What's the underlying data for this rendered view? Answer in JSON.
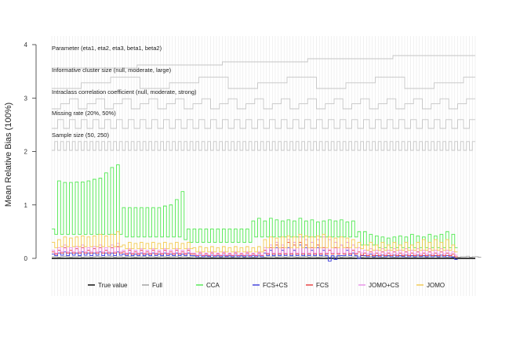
{
  "chart_data": {
    "type": "line",
    "ylabel": "Mean Relative Bias (100%)",
    "ylim": [
      0,
      4
    ],
    "yticks": [
      "0",
      "1",
      "2",
      "3",
      "4"
    ],
    "n_scenarios": 144,
    "grid": "vertical",
    "legend_placement": "bottom",
    "parameter_rows": [
      {
        "label": "Parameter (eta1, eta2, eta3, beta1, beta2)",
        "levels": 5
      },
      {
        "label": "Informative cluster size (null, moderate, large)",
        "levels": 3
      },
      {
        "label": "Intraclass correlation coefficient (null, moderate, strong)",
        "levels": 3
      },
      {
        "label": "Missing rate (20%, 50%)",
        "levels": 2
      },
      {
        "label": "Sample size (50, 250)",
        "levels": 2
      }
    ],
    "series": [
      {
        "name": "True value",
        "color": "#000000",
        "values": [
          0,
          0,
          0,
          0,
          0,
          0,
          0,
          0,
          0,
          0,
          0,
          0,
          0,
          0,
          0,
          0,
          0,
          0,
          0,
          0,
          0,
          0,
          0,
          0,
          0,
          0,
          0,
          0,
          0,
          0,
          0,
          0,
          0,
          0,
          0,
          0,
          0,
          0,
          0,
          0,
          0,
          0,
          0,
          0,
          0,
          0,
          0,
          0,
          0,
          0,
          0,
          0,
          0,
          0,
          0,
          0,
          0,
          0,
          0,
          0,
          0,
          0,
          0,
          0,
          0,
          0,
          0,
          0,
          0,
          0,
          0,
          0,
          0,
          0,
          0,
          0,
          0,
          0,
          0,
          0,
          0,
          0,
          0,
          0,
          0,
          0,
          0,
          0,
          0,
          0,
          0,
          0,
          0,
          0,
          0,
          0,
          0,
          0,
          0,
          0,
          0,
          0,
          0,
          0,
          0,
          0,
          0,
          0,
          0,
          0,
          0,
          0,
          0,
          0,
          0,
          0,
          0,
          0,
          0,
          0,
          0,
          0,
          0,
          0,
          0,
          0,
          0,
          0,
          0,
          0,
          0,
          0,
          0,
          0,
          0,
          0,
          0,
          0,
          0,
          0,
          0,
          0,
          0,
          0
        ]
      },
      {
        "name": "Full",
        "color": "#9e9e9e",
        "values": [
          0.03,
          0.03,
          0.02,
          0.03,
          0.04,
          0.03,
          0.02,
          0.03,
          0.03,
          0.04,
          0.02,
          0.03,
          0.03,
          0.02,
          0.03,
          0.04,
          0.03,
          0.02,
          0.03,
          0.03,
          0.04,
          0.02,
          0.03,
          0.03,
          0.02,
          0.03,
          0.04,
          0.03,
          0.02,
          0.03,
          0.03,
          0.04,
          0.02,
          0.03,
          0.03,
          0.02,
          0.03,
          0.04,
          0.03,
          0.02,
          0.03,
          0.03,
          0.04,
          0.02,
          0.03,
          0.03,
          0.02,
          0.03,
          0.04,
          0.03,
          0.02,
          0.03,
          0.03,
          0.04,
          0.02,
          0.03,
          0.03,
          0.02,
          0.03,
          0.04,
          0.03,
          0.02,
          0.03,
          0.03,
          0.04,
          0.02,
          0.03,
          0.03,
          0.02,
          0.03,
          0.04,
          0.03,
          0.02,
          0.03,
          0.03,
          0.04,
          0.02,
          0.03,
          0.03,
          0.02,
          0.03,
          0.04,
          0.03,
          0.02,
          0.03,
          0.03,
          0.04,
          0.02,
          0.03,
          0.03,
          0.02,
          0.03,
          0.04,
          0.03,
          0.02,
          0.03,
          0.03,
          0.04,
          0.02,
          0.03,
          0.03,
          0.02,
          0.03,
          0.04,
          0.03,
          0.02,
          0.03,
          0.03,
          0.04,
          0.02,
          0.03,
          0.03,
          0.02,
          0.03,
          0.04,
          0.03,
          0.02,
          0.03,
          0.03,
          0.04,
          0.02,
          0.03,
          0.03,
          0.02,
          0.03,
          0.04,
          0.03,
          0.02,
          0.03,
          0.03,
          0.04,
          0.02,
          0.03,
          0.03,
          0.02,
          0.03,
          0.04,
          0.03,
          0.02,
          0.03,
          0.03,
          0.04,
          0.02,
          0.03,
          0.03,
          0.02
        ]
      },
      {
        "name": "CCA",
        "color": "#4ee84e",
        "values": [
          0.55,
          0.45,
          1.45,
          0.45,
          1.42,
          0.45,
          1.42,
          0.45,
          1.43,
          0.45,
          1.43,
          0.45,
          1.45,
          0.45,
          1.48,
          0.45,
          1.5,
          0.45,
          1.6,
          0.45,
          1.7,
          0.45,
          1.75,
          0.45,
          0.95,
          0.4,
          0.95,
          0.4,
          0.95,
          0.4,
          0.95,
          0.4,
          0.95,
          0.4,
          0.95,
          0.4,
          0.95,
          0.4,
          0.98,
          0.4,
          1.0,
          0.4,
          1.1,
          0.4,
          1.25,
          0.35,
          0.55,
          0.3,
          0.55,
          0.3,
          0.55,
          0.3,
          0.55,
          0.3,
          0.55,
          0.3,
          0.55,
          0.3,
          0.55,
          0.3,
          0.55,
          0.3,
          0.55,
          0.3,
          0.55,
          0.3,
          0.55,
          0.3,
          0.7,
          0.4,
          0.75,
          0.4,
          0.7,
          0.4,
          0.75,
          0.4,
          0.72,
          0.4,
          0.7,
          0.4,
          0.72,
          0.4,
          0.7,
          0.4,
          0.75,
          0.4,
          0.7,
          0.4,
          0.72,
          0.4,
          0.68,
          0.4,
          0.7,
          0.4,
          0.72,
          0.4,
          0.7,
          0.4,
          0.72,
          0.4,
          0.68,
          0.4,
          0.7,
          0.4,
          0.5,
          0.25,
          0.5,
          0.25,
          0.45,
          0.25,
          0.42,
          0.2,
          0.4,
          0.2,
          0.38,
          0.2,
          0.4,
          0.2,
          0.42,
          0.2,
          0.4,
          0.2,
          0.45,
          0.2,
          0.42,
          0.2,
          0.4,
          0.2,
          0.45,
          0.2,
          0.42,
          0.2,
          0.45,
          0.2,
          0.5,
          0.2,
          0.45,
          0.2
        ]
      },
      {
        "name": "FCS+CS",
        "color": "#3a3adb",
        "values": [
          0.08,
          0.05,
          0.1,
          0.06,
          0.12,
          0.05,
          0.1,
          0.06,
          0.1,
          0.05,
          0.12,
          0.06,
          0.1,
          0.05,
          0.1,
          0.06,
          0.12,
          0.05,
          0.1,
          0.06,
          0.1,
          0.05,
          0.12,
          0.06,
          0.08,
          0.05,
          0.1,
          0.05,
          0.08,
          0.05,
          0.1,
          0.05,
          0.08,
          0.05,
          0.1,
          0.05,
          0.08,
          0.05,
          0.1,
          0.05,
          0.08,
          0.05,
          0.1,
          0.05,
          0.08,
          0.05,
          0.1,
          0.05,
          0.05,
          0.03,
          0.06,
          0.03,
          0.05,
          0.03,
          0.06,
          0.03,
          0.05,
          0.03,
          0.06,
          0.03,
          0.05,
          0.03,
          0.06,
          0.03,
          0.05,
          0.03,
          0.06,
          0.03,
          0.05,
          0.03,
          0.06,
          0.03,
          0.1,
          0.05,
          0.15,
          0.05,
          0.2,
          0.05,
          0.15,
          0.05,
          0.2,
          0.05,
          0.15,
          0.05,
          0.25,
          0.05,
          0.2,
          0.05,
          0.15,
          0.05,
          0.2,
          0.05,
          0.15,
          0.05,
          -0.05,
          0.05,
          -0.02,
          0.05,
          0.05,
          0.05,
          0.15,
          0.05,
          0.1,
          0.05,
          0.0,
          0.05,
          0.05,
          0.03,
          0.08,
          0.03,
          0.05,
          0.03,
          0.06,
          0.03,
          0.05,
          0.03,
          0.06,
          0.03,
          0.05,
          0.03,
          0.06,
          0.03,
          0.05,
          0.03,
          0.06,
          0.03,
          0.05,
          0.03,
          0.06,
          0.03,
          0.05,
          0.03,
          0.06,
          0.03,
          0.05,
          0.03,
          0.02,
          -0.02
        ]
      },
      {
        "name": "FCS",
        "color": "#e83a3a",
        "values": [
          0.12,
          0.08,
          0.15,
          0.1,
          0.2,
          0.1,
          0.15,
          0.1,
          0.18,
          0.1,
          0.2,
          0.1,
          0.15,
          0.1,
          0.18,
          0.1,
          0.2,
          0.1,
          0.15,
          0.1,
          0.2,
          0.1,
          0.22,
          0.1,
          0.12,
          0.08,
          0.15,
          0.08,
          0.12,
          0.08,
          0.15,
          0.08,
          0.12,
          0.08,
          0.15,
          0.08,
          0.12,
          0.08,
          0.15,
          0.08,
          0.12,
          0.08,
          0.15,
          0.08,
          0.12,
          0.08,
          0.15,
          0.08,
          0.08,
          0.05,
          0.1,
          0.05,
          0.08,
          0.05,
          0.1,
          0.05,
          0.08,
          0.05,
          0.1,
          0.05,
          0.08,
          0.05,
          0.1,
          0.05,
          0.08,
          0.05,
          0.1,
          0.05,
          0.08,
          0.05,
          0.1,
          0.05,
          0.15,
          0.08,
          0.2,
          0.08,
          0.25,
          0.08,
          0.2,
          0.08,
          0.3,
          0.08,
          0.25,
          0.08,
          0.3,
          0.08,
          0.25,
          0.08,
          0.2,
          0.08,
          0.25,
          0.08,
          0.2,
          0.08,
          0.15,
          0.08,
          0.2,
          0.08,
          0.25,
          0.08,
          0.2,
          0.08,
          0.15,
          0.08,
          0.12,
          0.06,
          0.1,
          0.05,
          0.12,
          0.05,
          0.1,
          0.05,
          0.12,
          0.05,
          0.1,
          0.05,
          0.12,
          0.05,
          0.1,
          0.05,
          0.12,
          0.05,
          0.1,
          0.05,
          0.12,
          0.05,
          0.1,
          0.05,
          0.12,
          0.05,
          0.1,
          0.05,
          0.12,
          0.05,
          0.1,
          0.05,
          0.08,
          0.03
        ]
      },
      {
        "name": "JOMO+CS",
        "color": "#e88ee8",
        "values": [
          0.15,
          0.1,
          0.2,
          0.12,
          0.25,
          0.12,
          0.2,
          0.12,
          0.22,
          0.12,
          0.25,
          0.12,
          0.2,
          0.12,
          0.22,
          0.12,
          0.25,
          0.12,
          0.2,
          0.12,
          0.25,
          0.12,
          0.28,
          0.12,
          0.15,
          0.1,
          0.18,
          0.1,
          0.15,
          0.1,
          0.18,
          0.1,
          0.15,
          0.1,
          0.18,
          0.1,
          0.15,
          0.1,
          0.18,
          0.1,
          0.15,
          0.1,
          0.18,
          0.1,
          0.15,
          0.1,
          0.18,
          0.1,
          0.1,
          0.06,
          0.12,
          0.06,
          0.1,
          0.06,
          0.12,
          0.06,
          0.1,
          0.06,
          0.12,
          0.06,
          0.1,
          0.06,
          0.12,
          0.06,
          0.1,
          0.06,
          0.12,
          0.06,
          0.1,
          0.06,
          0.12,
          0.06,
          0.2,
          0.1,
          0.25,
          0.1,
          0.3,
          0.1,
          0.25,
          0.1,
          0.35,
          0.1,
          0.3,
          0.1,
          0.4,
          0.1,
          0.35,
          0.1,
          0.3,
          0.1,
          0.35,
          0.1,
          0.4,
          0.1,
          0.35,
          0.1,
          0.3,
          0.1,
          0.25,
          0.1,
          0.3,
          0.1,
          0.25,
          0.1,
          0.2,
          0.1,
          0.15,
          0.08,
          0.18,
          0.08,
          0.15,
          0.08,
          0.18,
          0.08,
          0.15,
          0.08,
          0.18,
          0.08,
          0.15,
          0.08,
          0.18,
          0.08,
          0.15,
          0.08,
          0.18,
          0.08,
          0.15,
          0.08,
          0.18,
          0.08,
          0.15,
          0.08,
          0.18,
          0.08,
          0.15,
          0.08,
          0.12,
          0.06
        ]
      },
      {
        "name": "JOMO",
        "color": "#f2c94c",
        "values": [
          0.3,
          0.2,
          0.35,
          0.22,
          0.4,
          0.22,
          0.38,
          0.22,
          0.4,
          0.22,
          0.42,
          0.22,
          0.4,
          0.22,
          0.42,
          0.22,
          0.45,
          0.22,
          0.42,
          0.22,
          0.45,
          0.22,
          0.5,
          0.22,
          0.25,
          0.18,
          0.3,
          0.18,
          0.28,
          0.18,
          0.3,
          0.18,
          0.28,
          0.18,
          0.3,
          0.18,
          0.28,
          0.18,
          0.3,
          0.18,
          0.28,
          0.18,
          0.3,
          0.18,
          0.28,
          0.18,
          0.3,
          0.18,
          0.2,
          0.12,
          0.22,
          0.12,
          0.2,
          0.12,
          0.22,
          0.12,
          0.2,
          0.12,
          0.22,
          0.12,
          0.2,
          0.12,
          0.22,
          0.12,
          0.2,
          0.12,
          0.22,
          0.12,
          0.2,
          0.12,
          0.22,
          0.12,
          0.35,
          0.2,
          0.4,
          0.2,
          0.38,
          0.2,
          0.4,
          0.2,
          0.42,
          0.2,
          0.4,
          0.2,
          0.45,
          0.2,
          0.42,
          0.2,
          0.4,
          0.2,
          0.42,
          0.2,
          0.45,
          0.2,
          0.4,
          0.2,
          0.38,
          0.2,
          0.4,
          0.2,
          0.38,
          0.2,
          0.35,
          0.2,
          0.3,
          0.18,
          0.25,
          0.15,
          0.3,
          0.15,
          0.25,
          0.15,
          0.3,
          0.15,
          0.25,
          0.15,
          0.3,
          0.15,
          0.25,
          0.15,
          0.3,
          0.15,
          0.25,
          0.15,
          0.3,
          0.15,
          0.35,
          0.15,
          0.3,
          0.15,
          0.35,
          0.15,
          0.3,
          0.15,
          0.35,
          0.15,
          0.25,
          0.12
        ]
      }
    ]
  }
}
